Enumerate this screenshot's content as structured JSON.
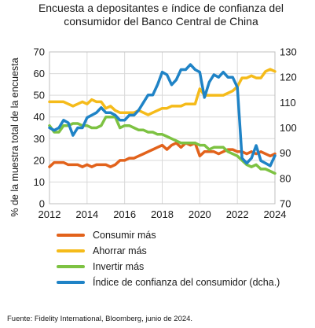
{
  "chart_data": {
    "type": "line",
    "title": "Encuesta a depositantes e índice de confianza del consumidor del Banco Central de China",
    "ylabel": "% de la muestra total de la encuesta",
    "xlim": [
      2012,
      2024
    ],
    "x_ticks": [
      "2012",
      "2014",
      "2016",
      "2018",
      "2020",
      "2022",
      "2024"
    ],
    "ylim_left": [
      0,
      70
    ],
    "y_ticks_left": [
      "0",
      "10",
      "20",
      "30",
      "40",
      "50",
      "60",
      "70"
    ],
    "ylim_right": [
      70,
      130
    ],
    "y_ticks_right": [
      "70",
      "80",
      "90",
      "100",
      "110",
      "120",
      "130"
    ],
    "grid": true,
    "legend_position": "bottom",
    "series": [
      {
        "name": "Consumir más",
        "axis": "left",
        "color": "#e2621b",
        "points": [
          [
            2012.0,
            17
          ],
          [
            2012.25,
            19
          ],
          [
            2012.5,
            19
          ],
          [
            2012.75,
            19
          ],
          [
            2013.0,
            18
          ],
          [
            2013.25,
            18
          ],
          [
            2013.5,
            18
          ],
          [
            2013.75,
            17
          ],
          [
            2014.0,
            18
          ],
          [
            2014.25,
            17
          ],
          [
            2014.5,
            18
          ],
          [
            2014.75,
            18
          ],
          [
            2015.0,
            18
          ],
          [
            2015.25,
            17
          ],
          [
            2015.5,
            18
          ],
          [
            2015.75,
            20
          ],
          [
            2016.0,
            20
          ],
          [
            2016.25,
            21
          ],
          [
            2016.5,
            21
          ],
          [
            2016.75,
            22
          ],
          [
            2017.0,
            23
          ],
          [
            2017.25,
            24
          ],
          [
            2017.5,
            25
          ],
          [
            2017.75,
            26
          ],
          [
            2018.0,
            27
          ],
          [
            2018.25,
            25
          ],
          [
            2018.5,
            27
          ],
          [
            2018.75,
            28
          ],
          [
            2019.0,
            26
          ],
          [
            2019.25,
            28
          ],
          [
            2019.5,
            27
          ],
          [
            2019.75,
            28
          ],
          [
            2020.0,
            22
          ],
          [
            2020.25,
            24
          ],
          [
            2020.5,
            24
          ],
          [
            2020.75,
            24
          ],
          [
            2021.0,
            23
          ],
          [
            2021.25,
            24
          ],
          [
            2021.5,
            25
          ],
          [
            2021.75,
            25
          ],
          [
            2022.0,
            24
          ],
          [
            2022.25,
            24
          ],
          [
            2022.5,
            23
          ],
          [
            2022.75,
            24
          ],
          [
            2023.0,
            23
          ],
          [
            2023.25,
            24
          ],
          [
            2023.5,
            23
          ],
          [
            2023.75,
            22
          ],
          [
            2024.0,
            23
          ]
        ]
      },
      {
        "name": "Ahorrar más",
        "axis": "left",
        "color": "#f5bb1a",
        "points": [
          [
            2012.0,
            47
          ],
          [
            2012.25,
            47
          ],
          [
            2012.5,
            47
          ],
          [
            2012.75,
            47
          ],
          [
            2013.0,
            46
          ],
          [
            2013.25,
            45
          ],
          [
            2013.5,
            46
          ],
          [
            2013.75,
            47
          ],
          [
            2014.0,
            46
          ],
          [
            2014.25,
            48
          ],
          [
            2014.5,
            47
          ],
          [
            2014.75,
            47
          ],
          [
            2015.0,
            44
          ],
          [
            2015.25,
            45
          ],
          [
            2015.5,
            43
          ],
          [
            2015.75,
            42
          ],
          [
            2016.0,
            42
          ],
          [
            2016.25,
            42
          ],
          [
            2016.5,
            42
          ],
          [
            2016.75,
            43
          ],
          [
            2017.0,
            42
          ],
          [
            2017.25,
            41
          ],
          [
            2017.5,
            42
          ],
          [
            2017.75,
            43
          ],
          [
            2018.0,
            44
          ],
          [
            2018.25,
            44
          ],
          [
            2018.5,
            45
          ],
          [
            2018.75,
            45
          ],
          [
            2019.0,
            45
          ],
          [
            2019.25,
            46
          ],
          [
            2019.5,
            46
          ],
          [
            2019.75,
            46
          ],
          [
            2020.0,
            53
          ],
          [
            2020.25,
            50
          ],
          [
            2020.5,
            50
          ],
          [
            2020.75,
            50
          ],
          [
            2021.0,
            50
          ],
          [
            2021.25,
            50
          ],
          [
            2021.5,
            51
          ],
          [
            2021.75,
            52
          ],
          [
            2022.0,
            54
          ],
          [
            2022.25,
            58
          ],
          [
            2022.5,
            58
          ],
          [
            2022.75,
            59
          ],
          [
            2023.0,
            58
          ],
          [
            2023.25,
            58
          ],
          [
            2023.5,
            61
          ],
          [
            2023.75,
            62
          ],
          [
            2024.0,
            61
          ]
        ]
      },
      {
        "name": "Invertir más",
        "axis": "left",
        "color": "#7dc242",
        "points": [
          [
            2012.0,
            36
          ],
          [
            2012.25,
            33
          ],
          [
            2012.5,
            33
          ],
          [
            2012.75,
            36
          ],
          [
            2013.0,
            36
          ],
          [
            2013.25,
            37
          ],
          [
            2013.5,
            37
          ],
          [
            2013.75,
            36
          ],
          [
            2014.0,
            36
          ],
          [
            2014.25,
            35
          ],
          [
            2014.5,
            35
          ],
          [
            2014.75,
            36
          ],
          [
            2015.0,
            40
          ],
          [
            2015.25,
            40
          ],
          [
            2015.5,
            40
          ],
          [
            2015.75,
            35
          ],
          [
            2016.0,
            36
          ],
          [
            2016.25,
            36
          ],
          [
            2016.5,
            35
          ],
          [
            2016.75,
            34
          ],
          [
            2017.0,
            34
          ],
          [
            2017.25,
            33
          ],
          [
            2017.5,
            33
          ],
          [
            2017.75,
            32
          ],
          [
            2018.0,
            32
          ],
          [
            2018.25,
            31
          ],
          [
            2018.5,
            30
          ],
          [
            2018.75,
            29
          ],
          [
            2019.0,
            28
          ],
          [
            2019.25,
            28
          ],
          [
            2019.5,
            28
          ],
          [
            2019.75,
            28
          ],
          [
            2020.0,
            27
          ],
          [
            2020.25,
            27
          ],
          [
            2020.5,
            25
          ],
          [
            2020.75,
            26
          ],
          [
            2021.0,
            26
          ],
          [
            2021.25,
            26
          ],
          [
            2021.5,
            24
          ],
          [
            2021.75,
            23
          ],
          [
            2022.0,
            22
          ],
          [
            2022.25,
            20
          ],
          [
            2022.5,
            18
          ],
          [
            2022.75,
            17
          ],
          [
            2023.0,
            18
          ],
          [
            2023.25,
            16
          ],
          [
            2023.5,
            16
          ],
          [
            2023.75,
            15
          ],
          [
            2024.0,
            14
          ]
        ]
      },
      {
        "name": "Índice de confianza del consumidor (dcha.)",
        "axis": "right",
        "color": "#1f83c6",
        "points": [
          [
            2012.0,
            100
          ],
          [
            2012.25,
            99
          ],
          [
            2012.5,
            100
          ],
          [
            2012.75,
            103
          ],
          [
            2013.0,
            102
          ],
          [
            2013.25,
            97
          ],
          [
            2013.5,
            100
          ],
          [
            2013.75,
            100
          ],
          [
            2014.0,
            104
          ],
          [
            2014.25,
            105
          ],
          [
            2014.5,
            106
          ],
          [
            2014.75,
            108
          ],
          [
            2015.0,
            106
          ],
          [
            2015.25,
            106
          ],
          [
            2015.5,
            105
          ],
          [
            2015.75,
            103
          ],
          [
            2016.0,
            103
          ],
          [
            2016.25,
            105
          ],
          [
            2016.5,
            105
          ],
          [
            2016.75,
            107
          ],
          [
            2017.0,
            110
          ],
          [
            2017.25,
            113
          ],
          [
            2017.5,
            113
          ],
          [
            2017.75,
            117
          ],
          [
            2018.0,
            122
          ],
          [
            2018.25,
            121
          ],
          [
            2018.5,
            117
          ],
          [
            2018.75,
            119
          ],
          [
            2019.0,
            123
          ],
          [
            2019.25,
            123
          ],
          [
            2019.5,
            125
          ],
          [
            2019.75,
            123
          ],
          [
            2020.0,
            122
          ],
          [
            2020.25,
            112
          ],
          [
            2020.5,
            118
          ],
          [
            2020.75,
            121
          ],
          [
            2021.0,
            120
          ],
          [
            2021.25,
            122
          ],
          [
            2021.5,
            120
          ],
          [
            2021.75,
            120
          ],
          [
            2022.0,
            116
          ],
          [
            2022.25,
            88
          ],
          [
            2022.5,
            86
          ],
          [
            2022.75,
            88
          ],
          [
            2023.0,
            93
          ],
          [
            2023.25,
            87
          ],
          [
            2023.5,
            86
          ],
          [
            2023.75,
            85
          ],
          [
            2024.0,
            89
          ]
        ]
      }
    ]
  },
  "source": "Fuente: Fidelity International, Bloomberg, junio de 2024."
}
